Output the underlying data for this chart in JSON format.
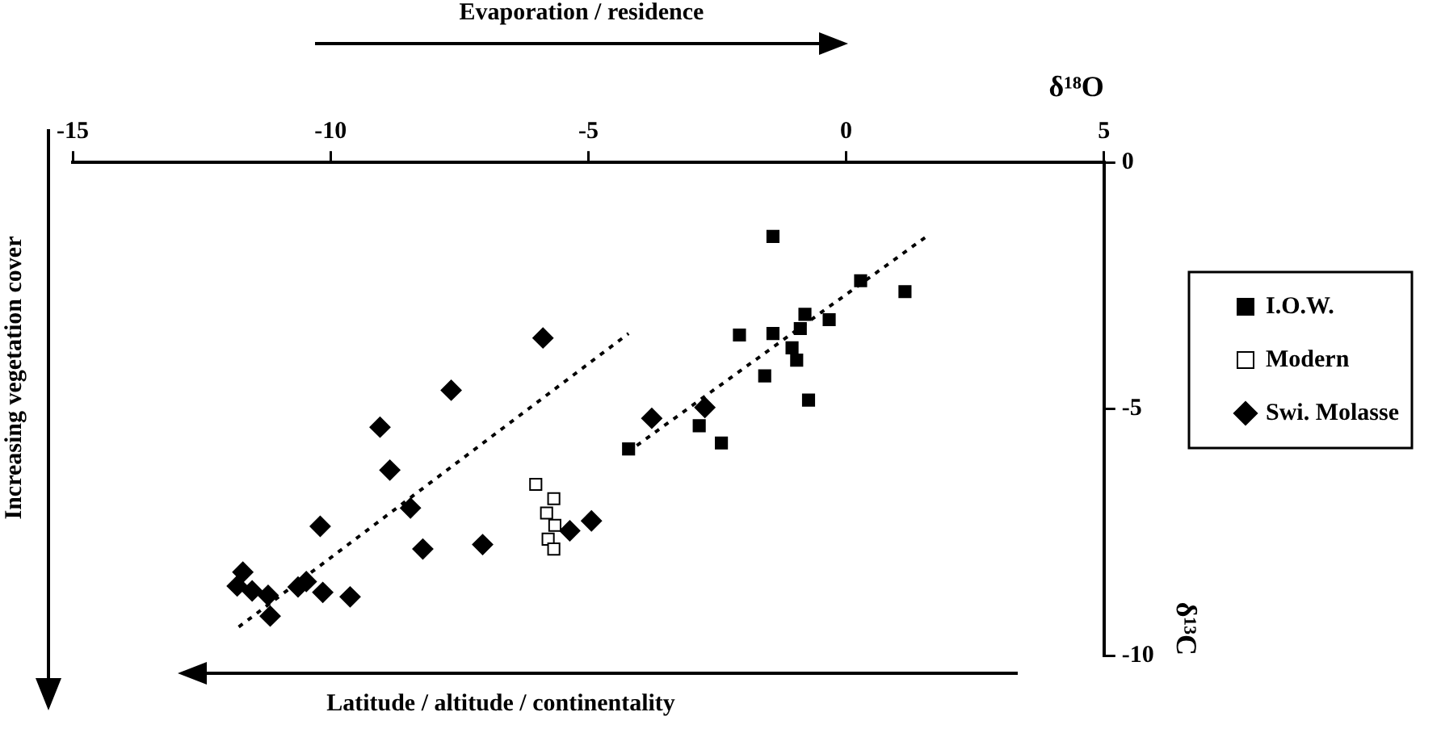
{
  "chart_data": {
    "type": "scatter",
    "xlabel": "δ¹⁸O",
    "ylabel": "δ¹³C",
    "annotations": [
      "Evaporation / residence",
      "Increasing vegetation cover",
      "Latitude / altitude / continentality"
    ],
    "xlim": [
      -15,
      5
    ],
    "xticks": [
      -15,
      -10,
      -5,
      0,
      5
    ],
    "ylim": [
      -10,
      0
    ],
    "yticks": [
      -10,
      -5,
      0
    ],
    "grid": false,
    "legend": "right",
    "series": [
      {
        "name": "I.O.W.",
        "color": "#000000",
        "marker": "square",
        "x": [
          -1.42,
          0.28,
          1.14,
          -0.8,
          -0.33,
          -0.89,
          -2.07,
          -1.42,
          -1.05,
          -0.96,
          -1.58,
          -0.73,
          -2.85,
          -2.42,
          -4.22
        ],
        "values": [
          -1.5,
          -2.4,
          -2.62,
          -3.08,
          -3.19,
          -3.37,
          -3.5,
          -3.47,
          -3.76,
          -4.01,
          -4.33,
          -4.82,
          -5.34,
          -5.69,
          -5.81
        ]
      },
      {
        "name": "Modern",
        "color": "#ffffff",
        "marker": "square",
        "x": [
          -6.02,
          -5.67,
          -5.81,
          -5.65,
          -5.78,
          -5.67
        ],
        "values": [
          -6.53,
          -6.82,
          -7.11,
          -7.36,
          -7.64,
          -7.84
        ]
      },
      {
        "name": "Swi. Molasse",
        "color": "#000000",
        "marker": "diamond",
        "x": [
          -5.88,
          -7.66,
          -9.04,
          -8.85,
          -3.77,
          -2.74,
          -8.45,
          -10.2,
          -8.21,
          -7.05,
          -4.94,
          -5.36,
          -11.7,
          -11.81,
          -11.52,
          -11.21,
          -10.63,
          -10.47,
          -10.15,
          -9.62,
          -11.17
        ],
        "values": [
          -3.56,
          -4.62,
          -5.37,
          -6.24,
          -5.19,
          -4.97,
          -7.01,
          -7.38,
          -7.84,
          -7.75,
          -7.27,
          -7.47,
          -8.31,
          -8.59,
          -8.69,
          -8.78,
          -8.61,
          -8.5,
          -8.72,
          -8.81,
          -9.2
        ]
      },
      {
        "type": "line",
        "color": "#000000",
        "marker": "none",
        "line_style": "dotted",
        "x": [
          -11.78,
          -4.22
        ],
        "values": [
          -9.42,
          -3.47
        ]
      },
      {
        "type": "line",
        "color": "#000000",
        "marker": "none",
        "line_style": "dotted",
        "x": [
          -4.06,
          1.56
        ],
        "values": [
          -5.74,
          -1.5
        ]
      }
    ]
  }
}
